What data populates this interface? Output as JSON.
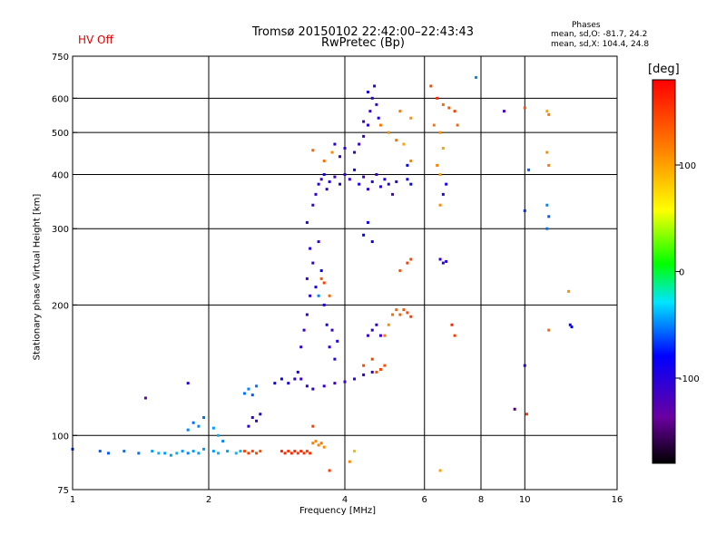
{
  "header": {
    "status": "HV Off",
    "title": "Tromsø 20150102 22:42:00–22:43:43",
    "subtitle": "RwPretec (Bp)",
    "phases_heading": "Phases",
    "phases_o": "mean, sd,O: -81.7, 24.2",
    "phases_x": "mean, sd,X: 104.4, 24.8"
  },
  "colors": {
    "status": "#e00000",
    "grid": "#000000"
  },
  "chart_data": {
    "type": "scatter",
    "title": "Tromsø 20150102 22:42:00–22:43:43",
    "subtitle": "RwPretec (Bp)",
    "xlabel": "Frequency [MHz]",
    "ylabel": "Stationary phase Virtual Height [km]",
    "x_scale": "log",
    "y_scale": "log",
    "xlim": [
      1,
      16
    ],
    "ylim": [
      75,
      750
    ],
    "xticks": [
      1,
      2,
      4,
      6,
      8,
      10,
      16
    ],
    "yticks": [
      75,
      100,
      200,
      300,
      400,
      500,
      600,
      750
    ],
    "xgrid": [
      2,
      4,
      6,
      8,
      10
    ],
    "ygrid": [
      100,
      200,
      300,
      400,
      500,
      600
    ],
    "colorbar": {
      "label": "[deg]",
      "range": [
        -180,
        180
      ],
      "ticks": [
        -100,
        0,
        100
      ]
    },
    "series": [
      {
        "points": [
          [
            1.0,
            93,
            -70
          ],
          [
            1.15,
            92,
            -60
          ],
          [
            1.2,
            91,
            -60
          ],
          [
            1.3,
            92,
            -55
          ],
          [
            1.4,
            91,
            -55
          ],
          [
            1.5,
            92,
            -45
          ],
          [
            1.55,
            91,
            -40
          ],
          [
            1.6,
            91,
            -45
          ],
          [
            1.65,
            90,
            -45
          ],
          [
            1.7,
            91,
            -40
          ],
          [
            1.75,
            92,
            -45
          ],
          [
            1.8,
            91,
            -50
          ],
          [
            1.85,
            92,
            -45
          ],
          [
            1.9,
            91,
            -45
          ],
          [
            1.95,
            93,
            -45
          ],
          [
            2.05,
            92,
            -45
          ],
          [
            2.1,
            91,
            -40
          ],
          [
            2.2,
            92,
            -45
          ],
          [
            2.3,
            91,
            -40
          ],
          [
            2.35,
            92,
            -40
          ],
          [
            1.8,
            103,
            -50
          ],
          [
            1.85,
            107,
            -55
          ],
          [
            1.9,
            105,
            -50
          ],
          [
            1.95,
            110,
            -55
          ],
          [
            2.05,
            104,
            -45
          ],
          [
            2.1,
            100,
            -40
          ],
          [
            2.15,
            97,
            -50
          ],
          [
            2.4,
            92,
            145
          ],
          [
            2.45,
            91,
            150
          ],
          [
            2.5,
            92,
            150
          ],
          [
            2.55,
            91,
            145
          ],
          [
            2.6,
            92,
            140
          ],
          [
            2.9,
            92,
            160
          ],
          [
            2.95,
            91,
            160
          ],
          [
            3.0,
            92,
            155
          ],
          [
            3.05,
            91,
            160
          ],
          [
            3.1,
            92,
            160
          ],
          [
            3.15,
            91,
            155
          ],
          [
            3.2,
            92,
            160
          ],
          [
            3.25,
            91,
            155
          ],
          [
            3.3,
            92,
            150
          ],
          [
            3.35,
            91,
            155
          ],
          [
            3.4,
            96,
            120
          ],
          [
            3.45,
            97,
            110
          ],
          [
            3.5,
            95,
            115
          ],
          [
            3.55,
            96,
            120
          ],
          [
            3.6,
            94,
            110
          ],
          [
            2.4,
            125,
            -55
          ],
          [
            2.45,
            128,
            -50
          ],
          [
            2.5,
            124,
            -60
          ],
          [
            2.55,
            130,
            -55
          ],
          [
            2.45,
            105,
            -100
          ],
          [
            2.5,
            110,
            -105
          ],
          [
            2.55,
            108,
            -110
          ],
          [
            2.6,
            112,
            -100
          ],
          [
            2.8,
            132,
            -85
          ],
          [
            2.9,
            135,
            -80
          ],
          [
            3.0,
            132,
            -95
          ],
          [
            3.1,
            135,
            -100
          ],
          [
            3.15,
            140,
            -90
          ],
          [
            3.2,
            135,
            -110
          ],
          [
            3.3,
            130,
            -105
          ],
          [
            3.4,
            128,
            -100
          ],
          [
            3.6,
            130,
            -105
          ],
          [
            3.8,
            132,
            -110
          ],
          [
            4.0,
            133,
            -110
          ],
          [
            4.2,
            135,
            -105
          ],
          [
            4.4,
            138,
            -100
          ],
          [
            4.6,
            140,
            -105
          ],
          [
            4.7,
            140,
            140
          ],
          [
            4.8,
            142,
            145
          ],
          [
            4.9,
            145,
            140
          ],
          [
            4.6,
            150,
            150
          ],
          [
            4.4,
            145,
            145
          ],
          [
            3.2,
            160,
            -100
          ],
          [
            3.25,
            175,
            -110
          ],
          [
            3.3,
            190,
            -105
          ],
          [
            3.35,
            210,
            -100
          ],
          [
            3.3,
            230,
            -110
          ],
          [
            3.4,
            250,
            -105
          ],
          [
            3.35,
            270,
            -100
          ],
          [
            3.5,
            280,
            -110
          ],
          [
            3.45,
            220,
            -90
          ],
          [
            3.55,
            240,
            -80
          ],
          [
            3.6,
            200,
            -95
          ],
          [
            3.65,
            180,
            -100
          ],
          [
            3.7,
            160,
            -105
          ],
          [
            3.75,
            175,
            -110
          ],
          [
            3.8,
            150,
            -100
          ],
          [
            3.85,
            165,
            -95
          ],
          [
            3.5,
            210,
            -50
          ],
          [
            3.55,
            230,
            140
          ],
          [
            3.6,
            225,
            150
          ],
          [
            3.7,
            210,
            130
          ],
          [
            3.3,
            310,
            -100
          ],
          [
            3.4,
            340,
            -110
          ],
          [
            3.45,
            360,
            -105
          ],
          [
            3.5,
            380,
            -100
          ],
          [
            3.55,
            390,
            -110
          ],
          [
            3.6,
            400,
            -95
          ],
          [
            3.65,
            370,
            -105
          ],
          [
            3.7,
            385,
            -100
          ],
          [
            3.8,
            395,
            -110
          ],
          [
            3.9,
            380,
            -100
          ],
          [
            4.0,
            400,
            -105
          ],
          [
            4.1,
            390,
            -110
          ],
          [
            4.2,
            410,
            -100
          ],
          [
            4.3,
            380,
            -95
          ],
          [
            4.4,
            395,
            -110
          ],
          [
            4.5,
            370,
            -105
          ],
          [
            4.6,
            385,
            -100
          ],
          [
            4.7,
            400,
            -110
          ],
          [
            4.8,
            375,
            -105
          ],
          [
            4.9,
            390,
            -100
          ],
          [
            5.0,
            380,
            -95
          ],
          [
            5.1,
            360,
            -110
          ],
          [
            5.2,
            385,
            -100
          ],
          [
            4.2,
            450,
            -100
          ],
          [
            4.3,
            470,
            -110
          ],
          [
            4.4,
            490,
            -105
          ],
          [
            4.5,
            520,
            -100
          ],
          [
            4.55,
            560,
            -110
          ],
          [
            4.6,
            600,
            -105
          ],
          [
            4.65,
            640,
            -100
          ],
          [
            4.5,
            620,
            -95
          ],
          [
            4.7,
            580,
            -110
          ],
          [
            4.75,
            540,
            -100
          ],
          [
            4.4,
            530,
            -105
          ],
          [
            3.8,
            470,
            -100
          ],
          [
            3.9,
            440,
            -110
          ],
          [
            4.0,
            460,
            -105
          ],
          [
            3.4,
            455,
            130
          ],
          [
            3.6,
            430,
            125
          ],
          [
            3.75,
            450,
            110
          ],
          [
            4.8,
            520,
            120
          ],
          [
            5.0,
            500,
            110
          ],
          [
            5.2,
            480,
            125
          ],
          [
            5.4,
            470,
            100
          ],
          [
            5.6,
            430,
            115
          ],
          [
            5.5,
            390,
            -90
          ],
          [
            5.6,
            380,
            -80
          ],
          [
            5.5,
            420,
            -85
          ],
          [
            5.3,
            560,
            120
          ],
          [
            5.6,
            540,
            110
          ],
          [
            4.9,
            170,
            120
          ],
          [
            5.0,
            180,
            110
          ],
          [
            5.1,
            190,
            125
          ],
          [
            5.2,
            195,
            130
          ],
          [
            5.3,
            190,
            135
          ],
          [
            5.4,
            195,
            140
          ],
          [
            5.5,
            192,
            145
          ],
          [
            5.6,
            188,
            150
          ],
          [
            4.5,
            170,
            -110
          ],
          [
            4.6,
            175,
            -100
          ],
          [
            4.7,
            180,
            -105
          ],
          [
            4.8,
            170,
            -110
          ],
          [
            4.4,
            290,
            -80
          ],
          [
            4.5,
            310,
            -90
          ],
          [
            4.6,
            280,
            -85
          ],
          [
            5.3,
            240,
            140
          ],
          [
            5.5,
            250,
            150
          ],
          [
            5.6,
            255,
            145
          ],
          [
            6.2,
            640,
            145
          ],
          [
            6.4,
            600,
            160
          ],
          [
            6.6,
            580,
            130
          ],
          [
            6.8,
            570,
            140
          ],
          [
            6.3,
            520,
            120
          ],
          [
            6.5,
            500,
            110
          ],
          [
            6.6,
            460,
            100
          ],
          [
            6.4,
            420,
            115
          ],
          [
            6.5,
            400,
            100
          ],
          [
            6.7,
            380,
            -90
          ],
          [
            6.6,
            360,
            -100
          ],
          [
            6.5,
            340,
            110
          ],
          [
            6.5,
            255,
            -110
          ],
          [
            6.6,
            250,
            -105
          ],
          [
            6.7,
            252,
            -100
          ],
          [
            7.0,
            560,
            150
          ],
          [
            7.1,
            520,
            130
          ],
          [
            6.9,
            180,
            160
          ],
          [
            7.0,
            170,
            150
          ],
          [
            7.8,
            670,
            -50
          ],
          [
            9.0,
            560,
            -120
          ],
          [
            10.0,
            570,
            140
          ],
          [
            10.2,
            410,
            -60
          ],
          [
            10.0,
            330,
            -70
          ],
          [
            9.5,
            115,
            -150
          ],
          [
            10.1,
            112,
            155
          ],
          [
            10.0,
            145,
            -100
          ],
          [
            11.2,
            560,
            100
          ],
          [
            11.3,
            550,
            120
          ],
          [
            11.2,
            450,
            110
          ],
          [
            11.3,
            420,
            120
          ],
          [
            11.2,
            340,
            -50
          ],
          [
            11.3,
            320,
            -60
          ],
          [
            11.2,
            300,
            -55
          ],
          [
            11.3,
            175,
            130
          ],
          [
            12.5,
            215,
            110
          ],
          [
            12.6,
            180,
            -90
          ],
          [
            12.7,
            178,
            -80
          ],
          [
            1.45,
            122,
            -130
          ],
          [
            1.8,
            132,
            -100
          ],
          [
            3.7,
            83,
            150
          ],
          [
            4.1,
            87,
            110
          ],
          [
            4.2,
            92,
            90
          ],
          [
            6.5,
            83,
            100
          ],
          [
            3.4,
            105,
            150
          ]
        ]
      }
    ]
  }
}
